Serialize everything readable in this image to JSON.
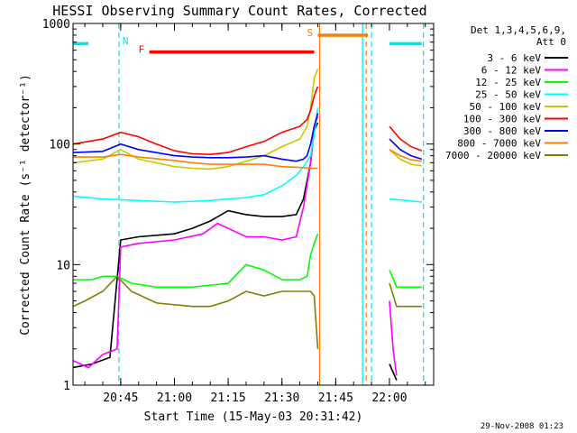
{
  "chart_data": {
    "type": "line",
    "title": "HESSI Observing Summary Count Rates, Corrected",
    "xlabel": "Start Time (15-May-03 20:31:42)",
    "ylabel": "Corrected Count Rate (s⁻¹ detector⁻¹)",
    "x_start_time": "20:31:42",
    "x_end_time": "22:12:20",
    "x_ticks": [
      "20:45",
      "21:00",
      "21:15",
      "21:30",
      "21:45",
      "22:00"
    ],
    "y_scale": "log",
    "ylim": [
      1,
      1000
    ],
    "y_ticks": [
      1,
      10,
      100,
      1000
    ],
    "footer_date": "29-Nov-2008 01:23",
    "legend": {
      "header_line1": "Det 1,3,4,5,6,9,",
      "header_line2": "Att 0",
      "placement": "right"
    },
    "flags": [
      {
        "label": "F",
        "start": "20:53",
        "end": "21:39",
        "y": 580,
        "color": "#ff0000"
      },
      {
        "label": "S",
        "start": "21:40",
        "end": "21:54",
        "y": 800,
        "color": "#ff8000"
      },
      {
        "label": "",
        "start": "20:31:42",
        "end": "20:36",
        "y": 680,
        "color": "#00e5ee"
      },
      {
        "label": "",
        "start": "22:00",
        "end": "22:09",
        "y": 680,
        "color": "#00e5ee"
      }
    ],
    "night_markers": {
      "label": "N",
      "color": "#00e5ee",
      "solid": [
        "20:31:42",
        "21:52:30"
      ],
      "dashed": [
        "20:44:30",
        "21:55",
        "22:09:30"
      ]
    },
    "saa_markers": {
      "color": "#ff8000",
      "solid": [
        "21:40:30"
      ],
      "dashed": [
        "21:53:30"
      ]
    },
    "series": [
      {
        "name": "3 - 6 keV",
        "color": "#000000",
        "segments": [
          {
            "x": [
              "20:31:42",
              "20:37",
              "20:42",
              "20:45",
              "20:50",
              "21:00",
              "21:05",
              "21:10",
              "21:15",
              "21:20",
              "21:25",
              "21:30",
              "21:34",
              "21:36",
              "21:38",
              "21:39",
              "21:40"
            ],
            "y": [
              1.4,
              1.5,
              1.7,
              16,
              17,
              18,
              20,
              23,
              28,
              26,
              25,
              25,
              26,
              35,
              70,
              130,
              150
            ]
          },
          {
            "x": [
              "22:00",
              "22:02"
            ],
            "y": [
              1.5,
              1.1
            ]
          }
        ]
      },
      {
        "name": "6 - 12 keV",
        "color": "#ff00ff",
        "segments": [
          {
            "x": [
              "20:31:42",
              "20:36",
              "20:40",
              "20:44",
              "20:45",
              "20:50",
              "21:00",
              "21:08",
              "21:12",
              "21:15",
              "21:20",
              "21:25",
              "21:30",
              "21:34",
              "21:36",
              "21:38",
              "21:39",
              "21:40"
            ],
            "y": [
              1.6,
              1.4,
              1.8,
              2.0,
              14,
              15,
              16,
              18,
              22,
              20,
              17,
              17,
              16,
              17,
              30,
              70,
              140,
              170
            ]
          },
          {
            "x": [
              "22:00",
              "22:01",
              "22:02"
            ],
            "y": [
              5,
              2,
              1.2
            ]
          }
        ]
      },
      {
        "name": "12 - 25 keV",
        "color": "#00ff00",
        "segments": [
          {
            "x": [
              "20:31:42",
              "20:37",
              "20:40",
              "20:44",
              "20:48",
              "20:55",
              "21:05",
              "21:15",
              "21:20",
              "21:25",
              "21:30",
              "21:35",
              "21:37",
              "21:38",
              "21:39",
              "21:40"
            ],
            "y": [
              7.5,
              7.5,
              8,
              8,
              7,
              6.5,
              6.5,
              7,
              10,
              9,
              7.5,
              7.5,
              8,
              12,
              15,
              18
            ]
          },
          {
            "x": [
              "22:00",
              "22:02",
              "22:05",
              "22:09"
            ],
            "y": [
              9,
              6.5,
              6.5,
              6.5
            ]
          }
        ]
      },
      {
        "name": "25 - 50 keV",
        "color": "#00ffff",
        "segments": [
          {
            "x": [
              "20:31:42",
              "20:40",
              "20:50",
              "21:00",
              "21:10",
              "21:15",
              "21:20",
              "21:25",
              "21:30",
              "21:34",
              "21:36",
              "21:38",
              "21:39",
              "21:40"
            ],
            "y": [
              37,
              35,
              34,
              33,
              34,
              35,
              36,
              38,
              45,
              55,
              65,
              80,
              120,
              200
            ]
          },
          {
            "x": [
              "22:00",
              "22:05",
              "22:09"
            ],
            "y": [
              35,
              34,
              33
            ]
          }
        ]
      },
      {
        "name": "50 - 100 keV",
        "color": "#c8c800",
        "segments": [
          {
            "x": [
              "20:31:42",
              "20:40",
              "20:45",
              "20:50",
              "21:00",
              "21:05",
              "21:10",
              "21:15",
              "21:20",
              "21:25",
              "21:30",
              "21:35",
              "21:37",
              "21:38",
              "21:39",
              "21:40"
            ],
            "y": [
              70,
              75,
              90,
              75,
              65,
              63,
              62,
              65,
              72,
              80,
              95,
              110,
              140,
              200,
              350,
              420
            ]
          },
          {
            "x": [
              "22:00",
              "22:03",
              "22:06",
              "22:09"
            ],
            "y": [
              90,
              75,
              68,
              66
            ]
          }
        ]
      },
      {
        "name": "100 - 300 keV",
        "color": "#ff0000",
        "segments": [
          {
            "x": [
              "20:31:42",
              "20:40",
              "20:45",
              "20:50",
              "20:55",
              "21:00",
              "21:05",
              "21:10",
              "21:15",
              "21:20",
              "21:25",
              "21:30",
              "21:35",
              "21:37",
              "21:38",
              "21:39",
              "21:40"
            ],
            "y": [
              100,
              110,
              125,
              115,
              100,
              88,
              83,
              82,
              85,
              95,
              105,
              125,
              140,
              160,
              190,
              250,
              300
            ]
          },
          {
            "x": [
              "22:00",
              "22:03",
              "22:06",
              "22:09"
            ],
            "y": [
              140,
              110,
              95,
              88
            ]
          }
        ]
      },
      {
        "name": "300 - 800 keV",
        "color": "#0000ff",
        "segments": [
          {
            "x": [
              "20:31:42",
              "20:40",
              "20:45",
              "20:50",
              "21:00",
              "21:05",
              "21:10",
              "21:15",
              "21:20",
              "21:25",
              "21:30",
              "21:34",
              "21:36",
              "21:37",
              "21:38",
              "21:39",
              "21:40"
            ],
            "y": [
              85,
              87,
              100,
              90,
              80,
              78,
              77,
              77,
              78,
              80,
              75,
              72,
              75,
              80,
              100,
              140,
              180
            ]
          },
          {
            "x": [
              "22:00",
              "22:03",
              "22:06",
              "22:09"
            ],
            "y": [
              110,
              90,
              80,
              75
            ]
          }
        ]
      },
      {
        "name": "800 - 7000 keV",
        "color": "#ff8000",
        "segments": [
          {
            "x": [
              "20:31:42",
              "20:40",
              "20:45",
              "20:50",
              "21:00",
              "21:05",
              "21:10",
              "21:15",
              "21:20",
              "21:25",
              "21:30",
              "21:35",
              "21:38",
              "21:40"
            ],
            "y": [
              78,
              78,
              82,
              78,
              73,
              70,
              68,
              68,
              68,
              68,
              65,
              64,
              63,
              63
            ]
          },
          {
            "x": [
              "22:00",
              "22:03",
              "22:06",
              "22:09"
            ],
            "y": [
              90,
              80,
              74,
              72
            ]
          }
        ]
      },
      {
        "name": "7000 - 20000 keV",
        "color": "#808000",
        "segments": [
          {
            "x": [
              "20:31:42",
              "20:35",
              "20:40",
              "20:44",
              "20:48",
              "20:55",
              "21:05",
              "21:10",
              "21:15",
              "21:20",
              "21:25",
              "21:30",
              "21:35",
              "21:38",
              "21:39",
              "21:40"
            ],
            "y": [
              4.5,
              5,
              6,
              8,
              6,
              4.8,
              4.5,
              4.5,
              5,
              6,
              5.5,
              6,
              6,
              6,
              5.5,
              2
            ]
          },
          {
            "x": [
              "22:00",
              "22:02",
              "22:05",
              "22:09"
            ],
            "y": [
              7,
              4.5,
              4.5,
              4.5
            ]
          }
        ]
      }
    ]
  }
}
